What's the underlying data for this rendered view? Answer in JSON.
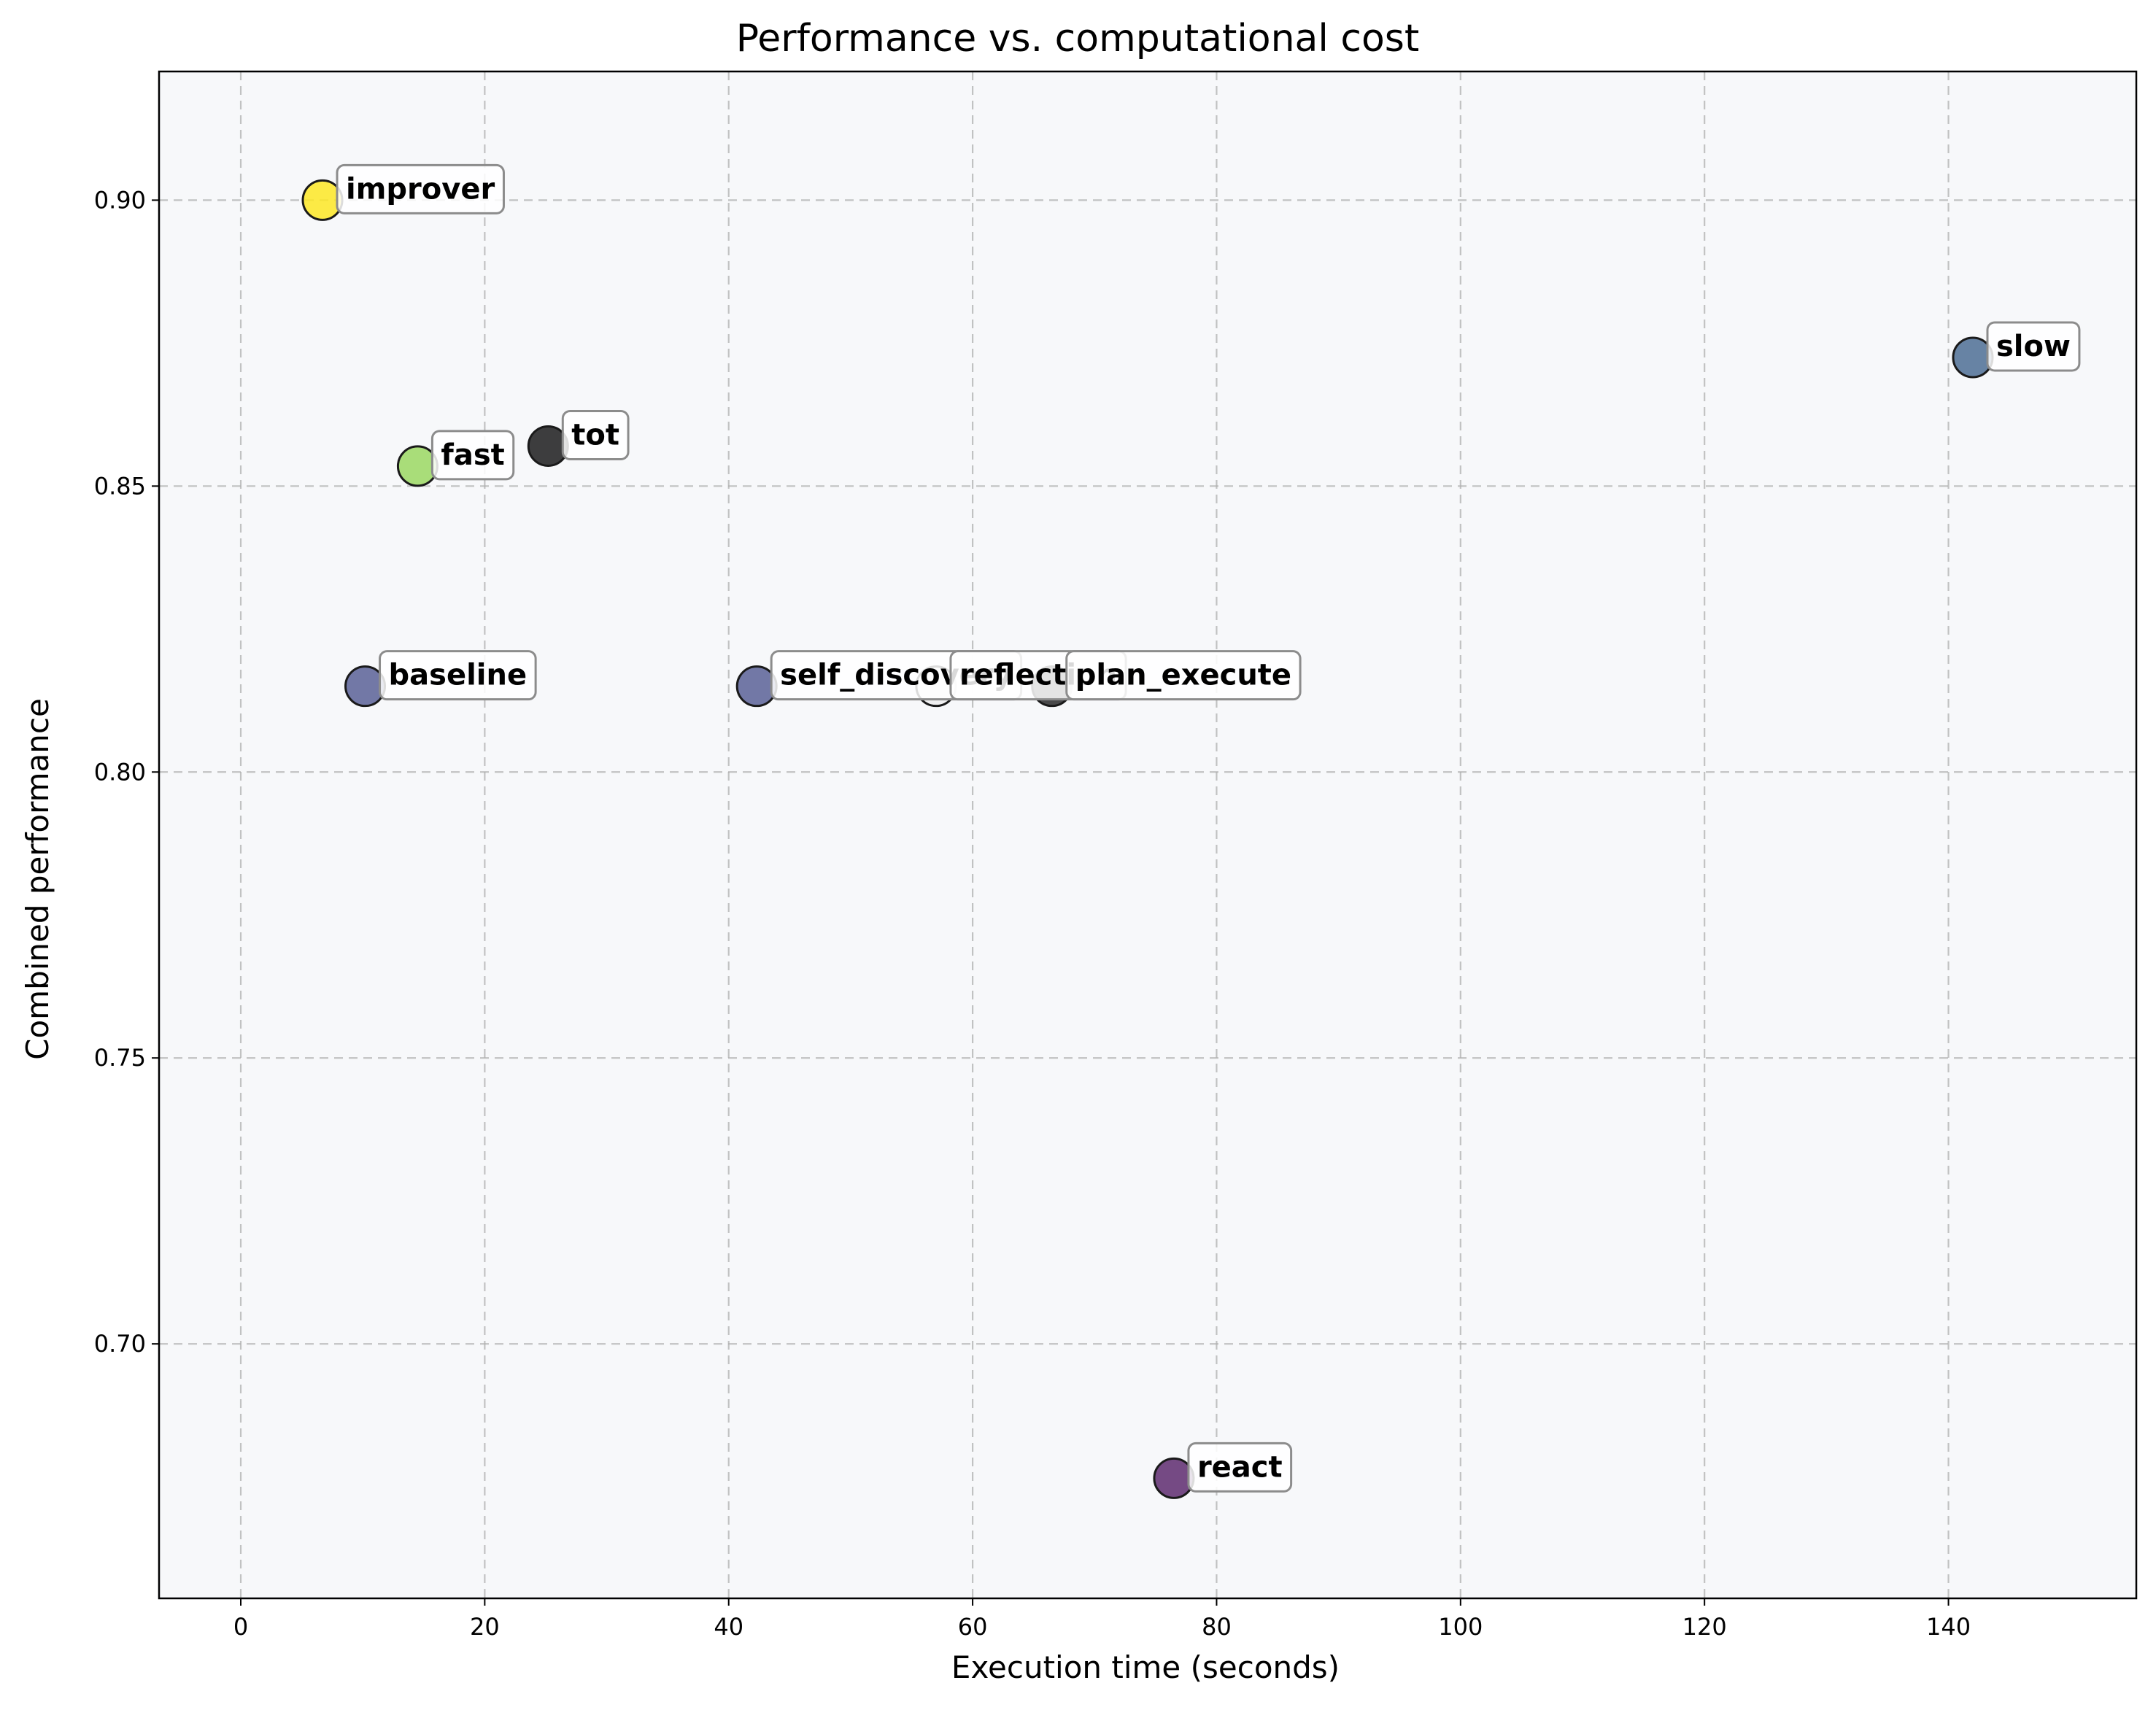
{
  "chart_data": {
    "type": "scatter",
    "title": "Performance vs. computational cost",
    "xlabel": "Execution time (seconds)",
    "ylabel": "Combined performance",
    "xlim": [
      -6.7,
      155.4
    ],
    "ylim": [
      0.6555,
      0.9225
    ],
    "xticks": [
      0,
      20,
      40,
      60,
      80,
      100,
      120,
      140
    ],
    "xtick_labels": [
      "0",
      "20",
      "40",
      "60",
      "80",
      "100",
      "120",
      "140"
    ],
    "yticks": [
      0.7,
      0.75,
      0.8,
      0.85,
      0.9
    ],
    "ytick_labels": [
      "0.70",
      "0.75",
      "0.80",
      "0.85",
      "0.90"
    ],
    "grid": true,
    "background": "#f7f8fa",
    "points": [
      {
        "label": "improver",
        "x": 6.7,
        "y": 0.9,
        "color": "#fde725"
      },
      {
        "label": "slow",
        "x": 142.0,
        "y": 0.8725,
        "color": "#4e6e94"
      },
      {
        "label": "tot",
        "x": 25.2,
        "y": 0.857,
        "color": "#1c1c1c"
      },
      {
        "label": "fast",
        "x": 14.5,
        "y": 0.8535,
        "color": "#9bd862"
      },
      {
        "label": "baseline",
        "x": 10.2,
        "y": 0.815,
        "color": "#5a6197"
      },
      {
        "label": "self_discovery",
        "x": 42.3,
        "y": 0.815,
        "color": "#5a6197"
      },
      {
        "label": "reflection",
        "x": 57.0,
        "y": 0.815,
        "color": "#eeeeee"
      },
      {
        "label": "plan_execute",
        "x": 66.5,
        "y": 0.815,
        "color": "#2a2a2a"
      },
      {
        "label": "react",
        "x": 76.5,
        "y": 0.6765,
        "color": "#5e2c6e"
      }
    ]
  }
}
